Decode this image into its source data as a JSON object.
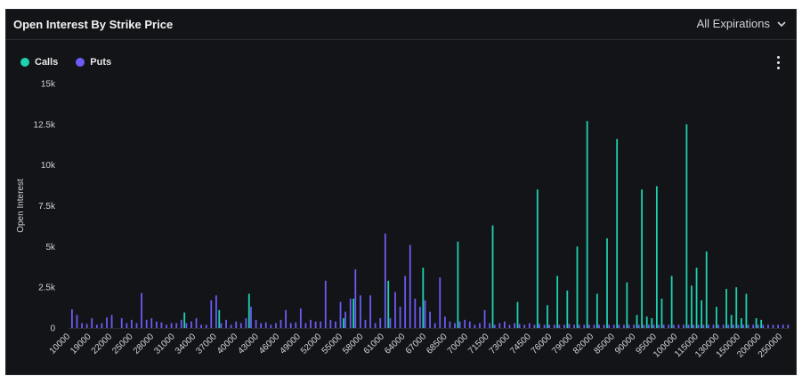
{
  "header": {
    "title": "Open Interest By Strike Price",
    "expiry_label": "All Expirations"
  },
  "colors": {
    "calls": "#1fd1b0",
    "puts": "#6b5cf5",
    "grid": "#2a2c31",
    "background": "#131417"
  },
  "chart_data": {
    "type": "bar",
    "title": "Open Interest By Strike Price",
    "xlabel": "",
    "ylabel": "Open Interest",
    "ylim": [
      0,
      15000
    ],
    "yticks": [
      0,
      2500,
      5000,
      7500,
      10000,
      12500,
      15000
    ],
    "ytick_labels": [
      "0",
      "2.5k",
      "5k",
      "7.5k",
      "10k",
      "12.5k",
      "15k"
    ],
    "grid": false,
    "legend_position": "top-left",
    "xtick_labels": [
      "10000",
      "19000",
      "22000",
      "25000",
      "28000",
      "31000",
      "34000",
      "37000",
      "40000",
      "43000",
      "46000",
      "49000",
      "52000",
      "55000",
      "58000",
      "61000",
      "64000",
      "67000",
      "68500",
      "70000",
      "71500",
      "73000",
      "74500",
      "76000",
      "79000",
      "82000",
      "85000",
      "90000",
      "95000",
      "100000",
      "115000",
      "130000",
      "150000",
      "200000",
      "250000"
    ],
    "series": [
      {
        "name": "Calls",
        "values": [
          0,
          0,
          0,
          0,
          0,
          0,
          0,
          0,
          0,
          0,
          0,
          0,
          0,
          0,
          0,
          0,
          0,
          0,
          0,
          0,
          0,
          0,
          0,
          950,
          0,
          0,
          0,
          0,
          0,
          0,
          1100,
          0,
          0,
          0,
          0,
          0,
          2100,
          0,
          0,
          0,
          0,
          0,
          0,
          0,
          0,
          0,
          0,
          0,
          0,
          0,
          0,
          0,
          0,
          0,
          0,
          600,
          0,
          1800,
          0,
          0,
          0,
          0,
          0,
          0,
          2900,
          0,
          0,
          0,
          0,
          0,
          0,
          3700,
          0,
          0,
          0,
          0,
          0,
          0,
          5300,
          0,
          0,
          0,
          0,
          0,
          0,
          6300,
          0,
          0,
          0,
          0,
          1600,
          0,
          0,
          0,
          8500,
          0,
          1400,
          0,
          3200,
          0,
          2300,
          0,
          5000,
          0,
          12700,
          0,
          2100,
          0,
          5500,
          0,
          11600,
          0,
          2800,
          0,
          800,
          8500,
          700,
          600,
          8700,
          1800,
          0,
          3200,
          0,
          0,
          12500,
          2600,
          3700,
          1700,
          4700,
          0,
          1300,
          0,
          2400,
          800,
          2500,
          600,
          2100,
          0,
          600,
          500
        ],
        "color": "#1fd1b0"
      },
      {
        "name": "Puts",
        "values": [
          1150,
          800,
          300,
          250,
          600,
          200,
          300,
          650,
          800,
          0,
          600,
          300,
          500,
          300,
          2150,
          500,
          600,
          400,
          350,
          200,
          300,
          300,
          500,
          300,
          400,
          600,
          200,
          200,
          1700,
          2000,
          300,
          500,
          200,
          400,
          300,
          600,
          1300,
          500,
          300,
          350,
          200,
          300,
          500,
          1100,
          300,
          350,
          1200,
          300,
          500,
          400,
          400,
          2900,
          500,
          400,
          1600,
          1000,
          1800,
          3600,
          2000,
          500,
          2000,
          300,
          600,
          5800,
          600,
          2200,
          1300,
          3200,
          5100,
          1800,
          1300,
          1700,
          1000,
          300,
          3100,
          700,
          400,
          300,
          400,
          500,
          400,
          200,
          300,
          1100,
          300,
          200,
          300,
          400,
          200,
          300,
          250,
          200,
          300,
          200,
          250,
          200,
          200,
          200,
          200,
          200,
          250,
          200,
          200,
          200,
          200,
          200,
          200,
          200,
          200,
          200,
          200,
          200,
          200,
          200,
          200,
          200,
          200,
          200,
          200,
          200,
          200,
          200,
          200,
          200,
          200,
          200,
          200,
          200,
          200,
          200,
          200,
          200,
          200,
          200,
          200,
          200,
          200,
          200,
          200,
          200,
          200,
          200,
          200,
          200,
          200
        ],
        "color": "#6b5cf5"
      }
    ]
  }
}
